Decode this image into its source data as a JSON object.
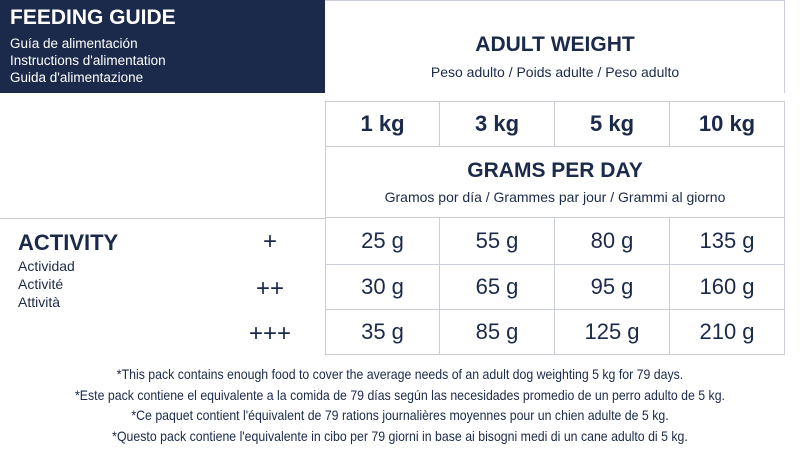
{
  "header": {
    "title": "FEEDING GUIDE",
    "subtitles": [
      "Guía de alimentación",
      "Instructions d'alimentation",
      "Guida d'alimentazione"
    ]
  },
  "table": {
    "title": "ADULT WEIGHT",
    "subtitle": "Peso adulto / Poids adulte / Peso adulto",
    "columns": [
      "1 kg",
      "3 kg",
      "5 kg",
      "10 kg"
    ],
    "unit_title": "GRAMS PER DAY",
    "unit_subtitle": "Gramos por día / Grammes par jour / Grammi al giorno",
    "row_header": {
      "title": "ACTIVITY",
      "subtitles": [
        "Actividad",
        "Activité",
        "Attività"
      ]
    },
    "rows": [
      {
        "level": "+",
        "cells": [
          "25 g",
          "55 g",
          "80 g",
          "135 g"
        ]
      },
      {
        "level": "++",
        "cells": [
          "30 g",
          "65 g",
          "95 g",
          "160 g"
        ]
      },
      {
        "level": "+++",
        "cells": [
          "35 g",
          "85 g",
          "125 g",
          "210 g"
        ]
      }
    ]
  },
  "notes": [
    "*This pack contains enough food to cover the average needs of an adult dog weighting 5 kg for 79 days.",
    "*Este pack contiene el equivalente a la comida de 79 días según las necesidades promedio de un perro adulto de 5 kg.",
    "*Ce paquet contient l'équivalent de 79 rations journalières moyennes pour un chien adulte de 5 kg.",
    "*Questo pack contiene l'equivalente in cibo per 79 giorni in base ai bisogni medi di un cane adulto di 5 kg."
  ]
}
